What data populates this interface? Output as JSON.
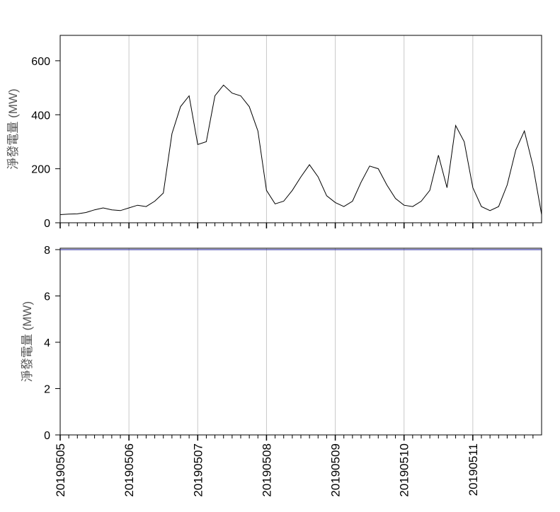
{
  "chart_data": [
    {
      "type": "line",
      "ylabel": "淨發電量 (MW)",
      "xlim": [
        0,
        7
      ],
      "ylim": [
        0,
        694
      ],
      "yticks": [
        0,
        200,
        400,
        600
      ],
      "xticks": [
        0,
        1,
        2,
        3,
        4,
        5,
        6
      ],
      "xminorticks": [
        0.125,
        0.25,
        0.375,
        0.5,
        0.625,
        0.75,
        0.875,
        1.125,
        1.25,
        1.375,
        1.5,
        1.625,
        1.75,
        1.875,
        2.125,
        2.25,
        2.375,
        2.5,
        2.625,
        2.75,
        2.875,
        3.125,
        3.25,
        3.375,
        3.5,
        3.625,
        3.75,
        3.875,
        4.125,
        4.25,
        4.375,
        4.5,
        4.625,
        4.75,
        4.875,
        5.125,
        5.25,
        5.375,
        5.5,
        5.625,
        5.75,
        5.875,
        6.125,
        6.25,
        6.375,
        6.5,
        6.625,
        6.75,
        6.875
      ],
      "grid": true,
      "series": [
        {
          "color": "#000000",
          "x": [
            0,
            0.125,
            0.25,
            0.375,
            0.5,
            0.625,
            0.75,
            0.875,
            1,
            1.125,
            1.25,
            1.375,
            1.5,
            1.625,
            1.75,
            1.875,
            2,
            2.125,
            2.25,
            2.375,
            2.5,
            2.625,
            2.75,
            2.875,
            3,
            3.125,
            3.25,
            3.375,
            3.5,
            3.625,
            3.75,
            3.875,
            4,
            4.125,
            4.25,
            4.375,
            4.5,
            4.625,
            4.75,
            4.875,
            5,
            5.125,
            5.25,
            5.375,
            5.5,
            5.625,
            5.75,
            5.875,
            6,
            6.125,
            6.25,
            6.375,
            6.5,
            6.625,
            6.75,
            6.875,
            7
          ],
          "values": [
            30,
            32,
            33,
            38,
            48,
            55,
            48,
            45,
            55,
            65,
            60,
            80,
            110,
            330,
            430,
            470,
            290,
            300,
            470,
            510,
            480,
            470,
            430,
            340,
            120,
            70,
            80,
            120,
            170,
            215,
            170,
            100,
            75,
            60,
            80,
            150,
            210,
            200,
            140,
            90,
            65,
            60,
            80,
            120,
            250,
            130,
            360,
            300,
            130,
            60,
            45,
            60,
            140,
            270,
            340,
            210,
            30
          ]
        }
      ]
    },
    {
      "type": "line",
      "ylabel": "淨發電量 (MW)",
      "xlim": [
        0,
        7
      ],
      "ylim": [
        0,
        8.06
      ],
      "yticks": [
        0,
        2,
        4,
        6,
        8
      ],
      "xticks": [
        {
          "value": 0,
          "label": "20190505"
        },
        {
          "value": 1,
          "label": "20190506"
        },
        {
          "value": 2,
          "label": "20190507"
        },
        {
          "value": 3,
          "label": "20190508"
        },
        {
          "value": 4,
          "label": "20190509"
        },
        {
          "value": 5,
          "label": "20190510"
        },
        {
          "value": 6,
          "label": "20190511"
        }
      ],
      "xminorticks": [
        0.125,
        0.25,
        0.375,
        0.5,
        0.625,
        0.75,
        0.875,
        1.125,
        1.25,
        1.375,
        1.5,
        1.625,
        1.75,
        1.875,
        2.125,
        2.25,
        2.375,
        2.5,
        2.625,
        2.75,
        2.875,
        3.125,
        3.25,
        3.375,
        3.5,
        3.625,
        3.75,
        3.875,
        4.125,
        4.25,
        4.375,
        4.5,
        4.625,
        4.75,
        4.875,
        5.125,
        5.25,
        5.375,
        5.5,
        5.625,
        5.75,
        5.875,
        6.125,
        6.25,
        6.375,
        6.5,
        6.625,
        6.75,
        6.875
      ],
      "grid": true,
      "series": [
        {
          "color": "#1a1a9a",
          "x": [
            0,
            7
          ],
          "values": [
            8,
            8
          ]
        }
      ]
    }
  ]
}
